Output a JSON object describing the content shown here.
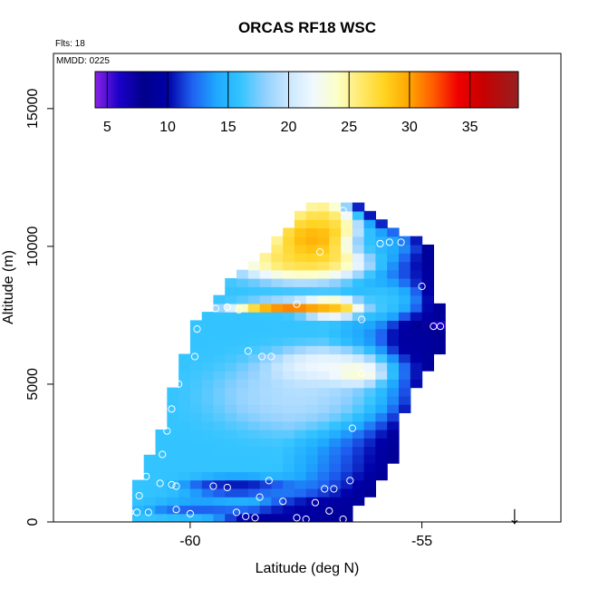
{
  "title": "ORCAS RF18 WSC",
  "info": {
    "flights": "Flts: 18",
    "date": "MMDD: 0225"
  },
  "chart_data": {
    "type": "heatmap",
    "title": "ORCAS RF18 WSC",
    "xlabel": "Latitude (deg N)",
    "ylabel": "Altitude (m)",
    "xlim": [
      -62.95,
      -52.0
    ],
    "ylim": [
      0,
      17000
    ],
    "x_ticks": [
      -60,
      -55
    ],
    "y_ticks": [
      0,
      5000,
      10000,
      15000
    ],
    "x_tick_labels": [
      "-60",
      "-55"
    ],
    "y_tick_labels": [
      "0",
      "5000",
      "10000",
      "15000"
    ],
    "color_scale": {
      "min": 4,
      "max": 39,
      "ticks": [
        5,
        10,
        15,
        20,
        25,
        30,
        35
      ],
      "tick_labels": [
        "5",
        "10",
        "15",
        "20",
        "25",
        "30",
        "35"
      ],
      "stops": [
        {
          "v": 4,
          "color": "#8a22e6"
        },
        {
          "v": 6,
          "color": "#1a00c8"
        },
        {
          "v": 8,
          "color": "#00008b"
        },
        {
          "v": 10,
          "color": "#0000a8"
        },
        {
          "v": 12,
          "color": "#1f5ff0"
        },
        {
          "v": 14,
          "color": "#1ea8ff"
        },
        {
          "v": 16,
          "color": "#33c4ff"
        },
        {
          "v": 18,
          "color": "#8fd0ff"
        },
        {
          "v": 20,
          "color": "#c9e7ff"
        },
        {
          "v": 22,
          "color": "#f0f8ff"
        },
        {
          "v": 24,
          "color": "#fcffc8"
        },
        {
          "v": 26,
          "color": "#ffe96a"
        },
        {
          "v": 28,
          "color": "#ffd21e"
        },
        {
          "v": 30,
          "color": "#ffa500"
        },
        {
          "v": 32,
          "color": "#ff5a00"
        },
        {
          "v": 34,
          "color": "#f00000"
        },
        {
          "v": 36,
          "color": "#c80000"
        },
        {
          "v": 39,
          "color": "#962020"
        }
      ]
    },
    "cell_size": {
      "dlat": 0.25,
      "dalt": 305
    },
    "profile_bounds": [
      {
        "alt": 0,
        "lat_min": -61.25,
        "lat_max": -56.75
      },
      {
        "alt": 1000,
        "lat_min": -61.25,
        "lat_max": -56.25
      },
      {
        "alt": 2000,
        "lat_min": -61.0,
        "lat_max": -55.75
      },
      {
        "alt": 4000,
        "lat_min": -60.5,
        "lat_max": -55.5
      },
      {
        "alt": 5500,
        "lat_min": -60.25,
        "lat_max": -55.0
      },
      {
        "alt": 7000,
        "lat_min": -60.0,
        "lat_max": -54.5
      },
      {
        "alt": 8000,
        "lat_min": -59.5,
        "lat_max": -54.75
      },
      {
        "alt": 9000,
        "lat_min": -59.0,
        "lat_max": -54.75
      },
      {
        "alt": 10000,
        "lat_min": -58.25,
        "lat_max": -55.0
      },
      {
        "alt": 11500,
        "lat_min": -57.5,
        "lat_max": -56.5
      }
    ],
    "features": [
      {
        "lat": -57.3,
        "alt": 10300,
        "value": 33,
        "sx": 0.7,
        "sy": 700
      },
      {
        "lat": -57.2,
        "alt": 11100,
        "value": 28,
        "sx": 0.45,
        "sy": 500
      },
      {
        "lat": -57.6,
        "alt": 9500,
        "value": 29,
        "sx": 1.0,
        "sy": 500
      },
      {
        "lat": -57.8,
        "alt": 7850,
        "value": 36,
        "sx": 0.9,
        "sy": 130
      },
      {
        "lat": -56.9,
        "alt": 7800,
        "value": 30,
        "sx": 0.5,
        "sy": 250
      },
      {
        "lat": -57.0,
        "alt": 5600,
        "value": 24,
        "sx": 0.9,
        "sy": 500
      },
      {
        "lat": -56.4,
        "alt": 5400,
        "value": 27,
        "sx": 0.4,
        "sy": 300
      },
      {
        "lat": -57.5,
        "alt": 4600,
        "value": 20,
        "sx": 1.3,
        "sy": 900
      },
      {
        "lat": -59.0,
        "alt": 1300,
        "value": 9,
        "sx": 0.8,
        "sy": 250
      },
      {
        "lat": -57.2,
        "alt": 400,
        "value": 9,
        "sx": 1.0,
        "sy": 400
      },
      {
        "lat": -58.5,
        "alt": 100,
        "value": 8,
        "sx": 0.6,
        "sy": 250
      },
      {
        "lat": -59.8,
        "alt": 500,
        "value": 11,
        "sx": 0.8,
        "sy": 200
      },
      {
        "lat": -54.6,
        "alt": 7100,
        "value": 5,
        "sx": 0.4,
        "sy": 150
      },
      {
        "lat": -55.2,
        "alt": 6800,
        "value": 9,
        "sx": 0.4,
        "sy": 600
      },
      {
        "lat": -55.8,
        "alt": 8000,
        "value": 17,
        "sx": 0.5,
        "sy": 500
      },
      {
        "lat": -56.0,
        "alt": 10100,
        "value": 15,
        "sx": 0.6,
        "sy": 400
      }
    ],
    "flight_points": [
      {
        "lat": -61.3,
        "alt": 350
      },
      {
        "lat": -61.15,
        "alt": 350
      },
      {
        "lat": -60.9,
        "alt": 350
      },
      {
        "lat": -60.3,
        "alt": 450
      },
      {
        "lat": -60.0,
        "alt": 300
      },
      {
        "lat": -61.1,
        "alt": 950
      },
      {
        "lat": -60.95,
        "alt": 1650
      },
      {
        "lat": -60.65,
        "alt": 1400
      },
      {
        "lat": -60.6,
        "alt": 2450
      },
      {
        "lat": -60.5,
        "alt": 3300
      },
      {
        "lat": -60.3,
        "alt": 1300
      },
      {
        "lat": -60.4,
        "alt": 1350
      },
      {
        "lat": -59.5,
        "alt": 1300
      },
      {
        "lat": -59.2,
        "alt": 1250
      },
      {
        "lat": -58.3,
        "alt": 1500
      },
      {
        "lat": -58.5,
        "alt": 900
      },
      {
        "lat": -58.0,
        "alt": 750
      },
      {
        "lat": -57.3,
        "alt": 700
      },
      {
        "lat": -56.9,
        "alt": 1200
      },
      {
        "lat": -57.1,
        "alt": 1200
      },
      {
        "lat": -56.55,
        "alt": 1500
      },
      {
        "lat": -59.0,
        "alt": 350
      },
      {
        "lat": -58.8,
        "alt": 200
      },
      {
        "lat": -58.6,
        "alt": 150
      },
      {
        "lat": -57.5,
        "alt": 100
      },
      {
        "lat": -57.7,
        "alt": 150
      },
      {
        "lat": -57.0,
        "alt": 400
      },
      {
        "lat": -56.7,
        "alt": 100
      },
      {
        "lat": -56.5,
        "alt": 3400
      },
      {
        "lat": -60.4,
        "alt": 4100
      },
      {
        "lat": -60.25,
        "alt": 5000
      },
      {
        "lat": -59.9,
        "alt": 6000
      },
      {
        "lat": -59.85,
        "alt": 7000
      },
      {
        "lat": -59.45,
        "alt": 7750
      },
      {
        "lat": -59.2,
        "alt": 7800
      },
      {
        "lat": -58.95,
        "alt": 7700
      },
      {
        "lat": -58.75,
        "alt": 6200
      },
      {
        "lat": -58.45,
        "alt": 6000
      },
      {
        "lat": -58.25,
        "alt": 6000
      },
      {
        "lat": -57.7,
        "alt": 7900
      },
      {
        "lat": -56.3,
        "alt": 7350
      },
      {
        "lat": -56.3,
        "alt": 5400
      },
      {
        "lat": -57.2,
        "alt": 9800
      },
      {
        "lat": -56.7,
        "alt": 11300
      },
      {
        "lat": -55.9,
        "alt": 10100
      },
      {
        "lat": -55.7,
        "alt": 10150
      },
      {
        "lat": -55.45,
        "alt": 10150
      },
      {
        "lat": -55.0,
        "alt": 8550
      },
      {
        "lat": -54.75,
        "alt": 7100
      },
      {
        "lat": -54.6,
        "alt": 7100
      }
    ],
    "marker": {
      "label": "↓",
      "lat": -53.0,
      "alt": 350
    }
  }
}
